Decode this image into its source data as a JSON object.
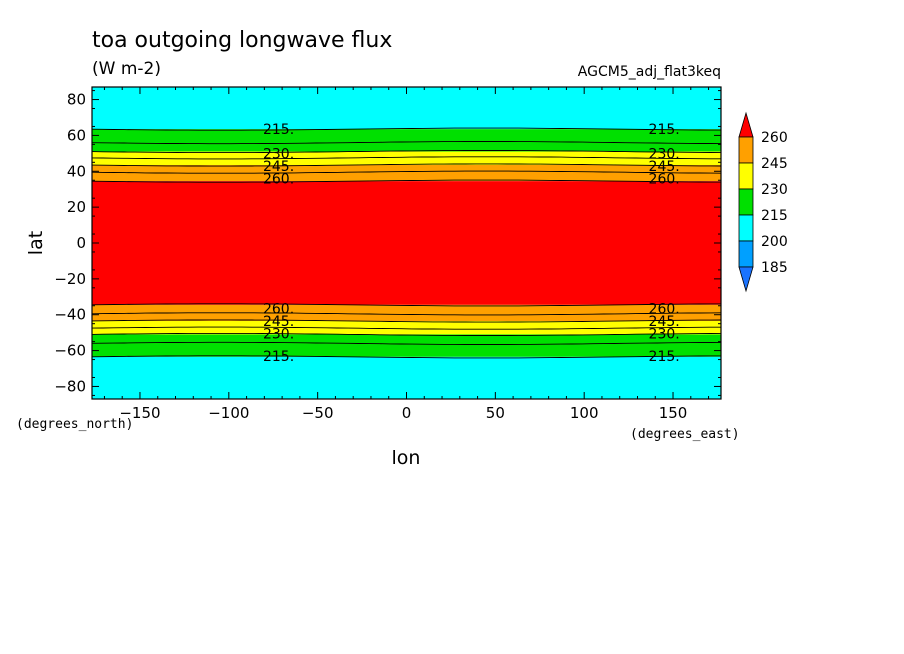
{
  "chart_data": {
    "type": "heatmap",
    "title": "toa outgoing longwave flux",
    "units": "(W m-2)",
    "dataset": "AGCM5_adj_flat3keq",
    "xlabel": "lon",
    "ylabel": "lat",
    "x_units": "(degrees_east)",
    "y_units": "(degrees_north)",
    "xlim": [
      -177,
      177
    ],
    "ylim": [
      -87,
      87
    ],
    "x_ticks": [
      -150,
      -100,
      -50,
      0,
      50,
      100,
      150
    ],
    "y_ticks": [
      80,
      60,
      40,
      20,
      0,
      -20,
      -40,
      -60,
      -80
    ],
    "y_tick_labels": [
      "80",
      "60",
      "40",
      "20",
      "0",
      "−20",
      "−40",
      "−60",
      "−80"
    ],
    "x_tick_labels": [
      "−150",
      "−100",
      "−50",
      "0",
      "50",
      "100",
      "150"
    ],
    "levels": [
      185,
      200,
      215,
      230,
      245,
      260
    ],
    "colorbar_labels": [
      "260",
      "245",
      "230",
      "215",
      "200",
      "185"
    ],
    "band_colors": {
      "below_185": "#1a73ff",
      "185_200": "#00a0ff",
      "200_215": "#00ffff",
      "215_230": "#00e000",
      "230_245": "#ffff00",
      "245_260": "#ffa000",
      "above_260": "#ff0000"
    },
    "contour_lat_north": {
      "215": 63.5,
      "222.5": 56,
      "230": 51,
      "237.5": 47.5,
      "245": 43.5,
      "252.5": 39.5,
      "260": 34.5
    },
    "contour_lat_south": {
      "215": -63.5,
      "222.5": -56,
      "230": -51,
      "237.5": -47.5,
      "245": -43.5,
      "252.5": -39.5,
      "260": -34.5
    },
    "contour_labels": [
      {
        "text": "215.",
        "lon": -72,
        "lat": 63.5
      },
      {
        "text": "230.",
        "lon": -72,
        "lat": 50
      },
      {
        "text": "245.",
        "lon": -72,
        "lat": 43
      },
      {
        "text": "260.",
        "lon": -72,
        "lat": 36
      },
      {
        "text": "215.",
        "lon": 145,
        "lat": 63.5
      },
      {
        "text": "230.",
        "lon": 145,
        "lat": 50
      },
      {
        "text": "245.",
        "lon": 145,
        "lat": 43
      },
      {
        "text": "260.",
        "lon": 145,
        "lat": 36
      },
      {
        "text": "260.",
        "lon": -72,
        "lat": -36.5
      },
      {
        "text": "245.",
        "lon": -72,
        "lat": -43.5
      },
      {
        "text": "230.",
        "lon": -72,
        "lat": -50.5
      },
      {
        "text": "215.",
        "lon": -72,
        "lat": -63
      },
      {
        "text": "260.",
        "lon": 145,
        "lat": -36.5
      },
      {
        "text": "245.",
        "lon": 145,
        "lat": -43.5
      },
      {
        "text": "230.",
        "lon": 145,
        "lat": -50.5
      },
      {
        "text": "215.",
        "lon": 145,
        "lat": -63
      }
    ],
    "grid": false,
    "legend": "right"
  }
}
